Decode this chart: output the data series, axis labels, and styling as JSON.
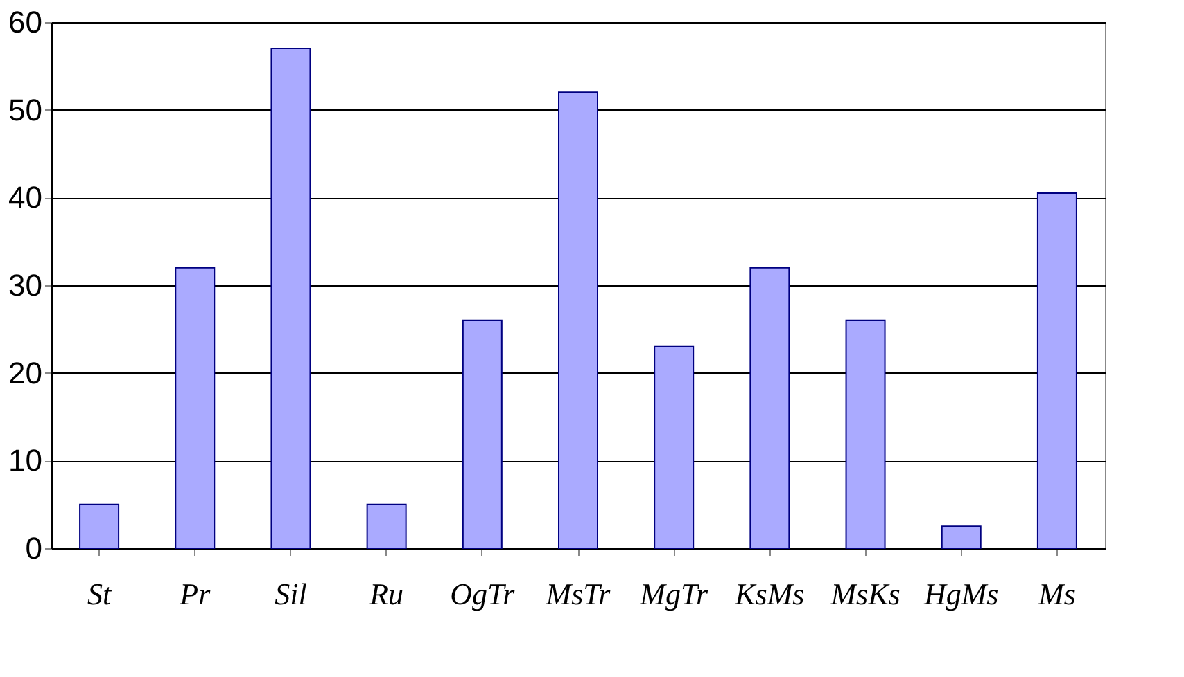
{
  "chart_data": {
    "type": "bar",
    "categories": [
      "St",
      "Pr",
      "Sil",
      "Ru",
      "OgTr",
      "MsTr",
      "MgTr",
      "KsMs",
      "MsKs",
      "HgMs",
      "Ms"
    ],
    "values": [
      5,
      32,
      57,
      5,
      26,
      52,
      23,
      32,
      26,
      2.5,
      40.5
    ],
    "color": "#aaaaff",
    "ylim": [
      0,
      60
    ],
    "yticks": [
      0,
      10,
      20,
      30,
      40,
      50,
      60
    ],
    "grid": "y"
  }
}
